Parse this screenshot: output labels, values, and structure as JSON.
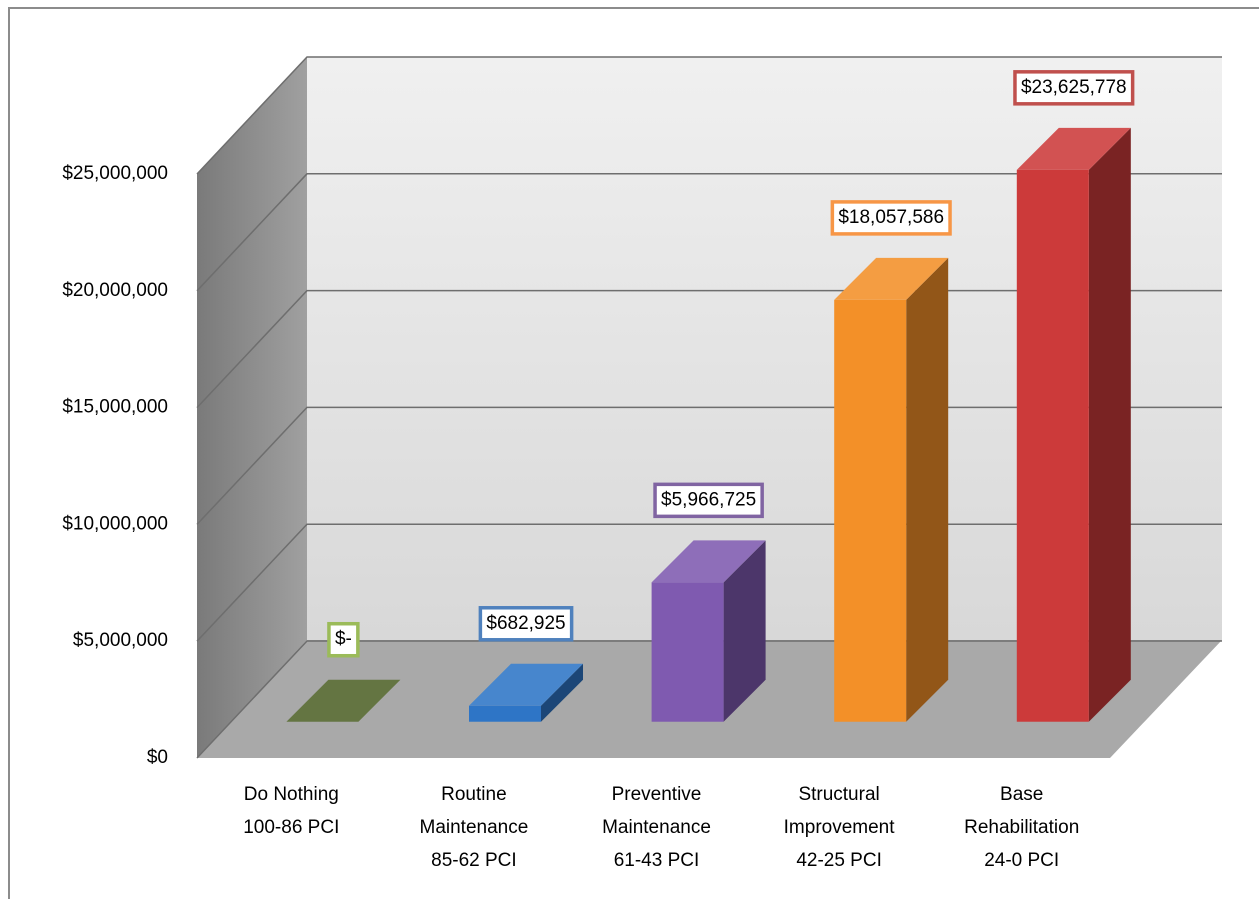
{
  "chart_data": {
    "type": "bar3d",
    "categories": [
      [
        "Do Nothing",
        "100-86 PCI"
      ],
      [
        "Routine",
        "Maintenance",
        "85-62 PCI"
      ],
      [
        "Preventive",
        "Maintenance",
        "61-43 PCI"
      ],
      [
        "Structural",
        "Improvement",
        "42-25 PCI"
      ],
      [
        "Base",
        "Rehabilitation",
        "24-0 PCI"
      ]
    ],
    "values": [
      0,
      682925,
      5966725,
      18057586,
      23625778
    ],
    "value_labels": [
      "$-",
      "$682,925",
      "$5,966,725",
      "$18,057,586",
      "$23,625,778"
    ],
    "colors": [
      "#4f6228",
      "#2e75c6",
      "#7f5ab0",
      "#f39028",
      "#cc3a3a"
    ],
    "label_colors": [
      "#9bbb59",
      "#4f81bd",
      "#8064a2",
      "#f79646",
      "#c0504d"
    ],
    "ylim": [
      0,
      25000000
    ],
    "yticks": [
      {
        "value": 0,
        "label": "$0"
      },
      {
        "value": 5000000,
        "label": "$5,000,000"
      },
      {
        "value": 10000000,
        "label": "$10,000,000"
      },
      {
        "value": 15000000,
        "label": "$15,000,000"
      },
      {
        "value": 20000000,
        "label": "$20,000,000"
      },
      {
        "value": 25000000,
        "label": "$25,000,000"
      }
    ],
    "grid": true
  }
}
